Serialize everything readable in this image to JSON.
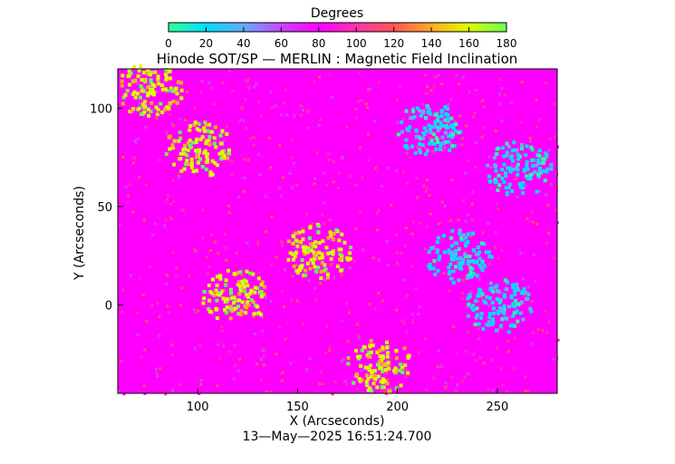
{
  "chart_data": {
    "type": "heatmap",
    "title": "Hinode SOT/SP — MERLIN : Magnetic Field Inclination",
    "xlabel": "X (Arcseconds)",
    "ylabel": "Y (Arcseconds)",
    "footer": "13—May—2025 16:51:24.700",
    "colorbar": {
      "label": "Degrees",
      "ticks": [
        "0",
        "20",
        "40",
        "60",
        "80",
        "100",
        "120",
        "140",
        "160",
        "180"
      ],
      "range": [
        0,
        180
      ],
      "colormap": [
        "#33ff99",
        "#00ddff",
        "#66aaff",
        "#cc44ff",
        "#ff00ff",
        "#ff33aa",
        "#ff5555",
        "#ffaa22",
        "#ddff00",
        "#66ff55"
      ]
    },
    "xlim": [
      60,
      280
    ],
    "ylim": [
      -45,
      120
    ],
    "x_ticks": [
      100,
      150,
      200,
      250
    ],
    "y_ticks": [
      0,
      50,
      100
    ],
    "background_level_deg": 90,
    "regions": [
      {
        "label": "positive polarity (yellow)",
        "inclination_deg": 160,
        "centers": [
          [
            160,
            28
          ],
          [
            118,
            5
          ],
          [
            100,
            80
          ],
          [
            190,
            -30
          ],
          [
            75,
            110
          ]
        ]
      },
      {
        "label": "negative polarity (cyan)",
        "inclination_deg": 20,
        "centers": [
          [
            230,
            25
          ],
          [
            250,
            0
          ],
          [
            215,
            90
          ],
          [
            260,
            70
          ]
        ]
      }
    ]
  }
}
